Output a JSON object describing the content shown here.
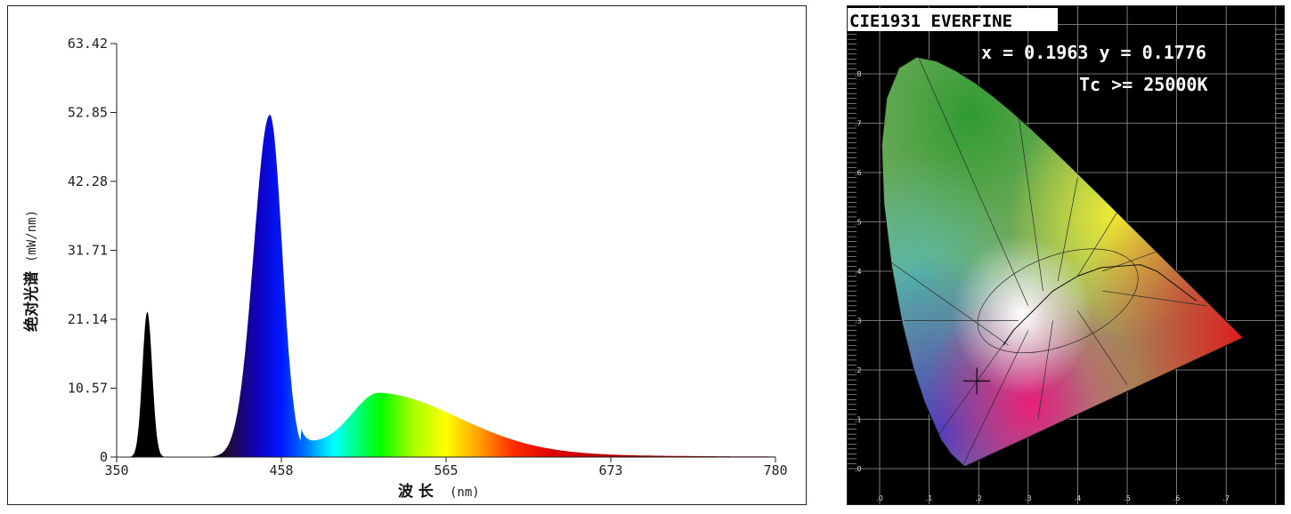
{
  "chart_data": [
    {
      "type": "area",
      "title": "",
      "xlabel": "波 长",
      "xlabel_unit": "(nm)",
      "ylabel": "绝对光谱",
      "ylabel_unit": "(mW/nm)",
      "xlim": [
        350,
        780
      ],
      "ylim": [
        0,
        63.42
      ],
      "x_ticks": [
        "350",
        "458",
        "565",
        "673",
        "780"
      ],
      "y_ticks": [
        "0",
        "10.57",
        "21.14",
        "31.71",
        "42.28",
        "52.85",
        "63.42"
      ],
      "color_fill": "wavelength spectrum",
      "peaks": [
        {
          "center_nm": 370,
          "value": 22.3
        },
        {
          "center_nm": 450,
          "value": 52.5
        },
        {
          "center_nm": 522,
          "value": 9.6
        }
      ],
      "grid": false
    },
    {
      "type": "scatter",
      "title": "CIE1931 EVERFINE",
      "readout": "x = 0.1963 y = 0.1776",
      "cct": "Tc >= 25000K",
      "x_ticks": [
        ".0",
        ".1",
        ".2",
        ".3",
        ".4",
        ".5",
        ".6",
        ".7"
      ],
      "y_ticks": [
        ".0",
        ".1",
        ".2",
        ".3",
        ".4",
        ".5",
        ".6",
        ".7",
        ".8"
      ],
      "point": {
        "x": 0.1963,
        "y": 0.1776
      },
      "grid": true
    }
  ],
  "colors": {
    "panel_border": "#222222",
    "cie_background": "#000000",
    "grid": "#9a9a9a",
    "uv_peak": "#000000"
  }
}
